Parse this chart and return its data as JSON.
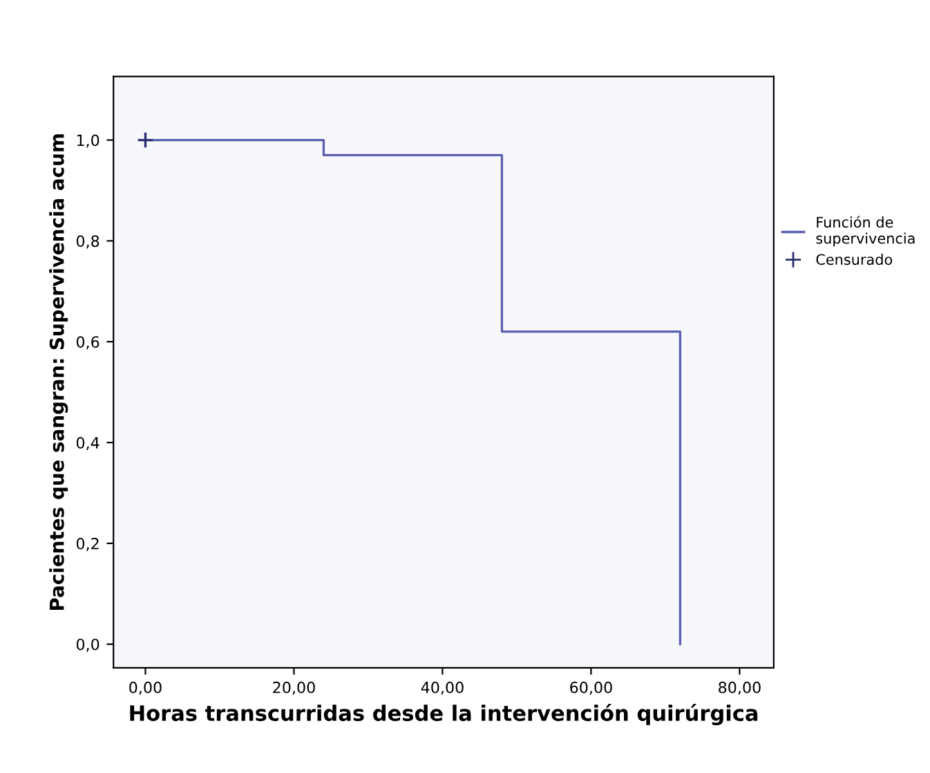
{
  "chart_data": {
    "type": "step",
    "xlabel": "Horas transcurridas desde la intervención quirúrgica",
    "ylabel": "Pacientes que sangran: Supervivencia acum",
    "xlim": [
      -4.3,
      84.6
    ],
    "ylim": [
      -0.047,
      1.126
    ],
    "xticks": [
      {
        "value": 0,
        "label": "0,00"
      },
      {
        "value": 20,
        "label": "20,00"
      },
      {
        "value": 40,
        "label": "40,00"
      },
      {
        "value": 60,
        "label": "60,00"
      },
      {
        "value": 80,
        "label": "80,00"
      }
    ],
    "yticks": [
      {
        "value": 0,
        "label": "0,0"
      },
      {
        "value": 0.2,
        "label": "0,2"
      },
      {
        "value": 0.4,
        "label": "0,4"
      },
      {
        "value": 0.6,
        "label": "0,6"
      },
      {
        "value": 0.8,
        "label": "0,8"
      },
      {
        "value": 1.0,
        "label": "1,0"
      }
    ],
    "grid": false,
    "legend": "right",
    "series": [
      {
        "name": "Función de supervivencia",
        "color": "#5a5fb0",
        "x": [
          0,
          24,
          48,
          72
        ],
        "values": [
          1.0,
          0.97,
          0.62,
          0.0
        ]
      },
      {
        "name": "Censurado",
        "type": "scatter",
        "marker": "cross",
        "color": "#2a2d70",
        "x": [
          0
        ],
        "values": [
          1.0
        ]
      }
    ]
  }
}
